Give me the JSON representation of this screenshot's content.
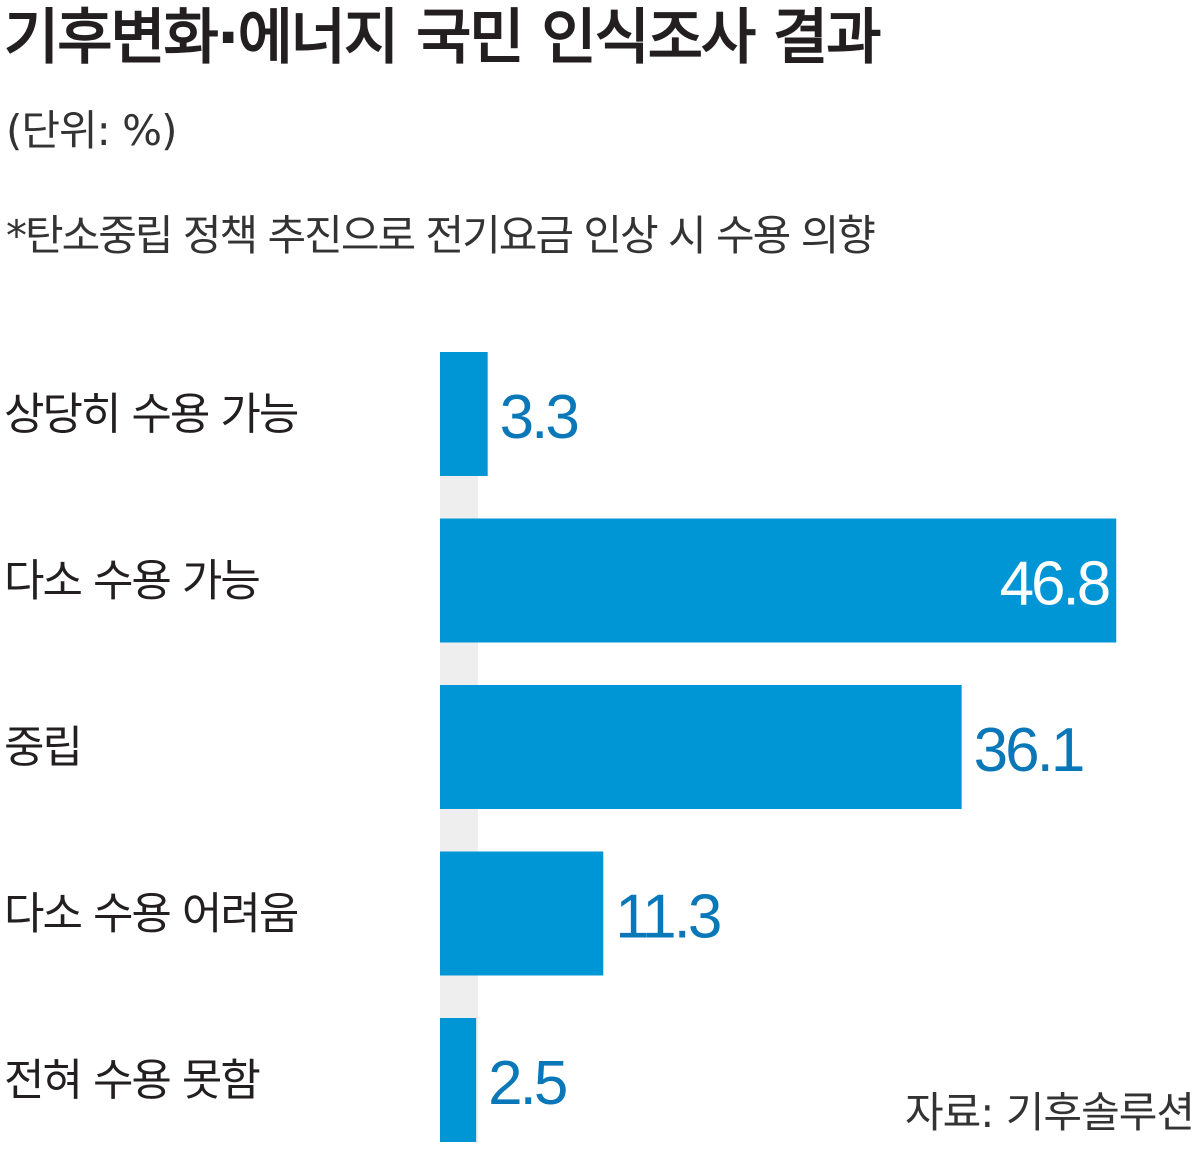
{
  "header": {
    "title": "기후변화·에너지 국민 인식조사 결과",
    "unit": "(단위: %)",
    "subtitle": "*탄소중립 정책 추진으로 전기요금 인상 시 수용 의향"
  },
  "footer": {
    "source": "자료: 기후솔루션"
  },
  "colors": {
    "bar": "#0096d6",
    "value_outside": "#0a78b8",
    "value_inside": "#ffffff",
    "track": "#eeeeee",
    "label": "#231f20"
  },
  "chart_data": {
    "type": "bar",
    "orientation": "horizontal",
    "categories": [
      "상당히 수용 가능",
      "다소 수용 가능",
      "중립",
      "다소 수용 어려움",
      "전혀 수용 못함"
    ],
    "values": [
      3.3,
      46.8,
      36.1,
      11.3,
      2.5
    ],
    "value_labels": [
      "3.3",
      "46.8",
      "36.1",
      "11.3",
      "2.5"
    ],
    "unit": "%",
    "xlim": [
      0,
      50
    ],
    "grid": false,
    "legend": "none"
  }
}
